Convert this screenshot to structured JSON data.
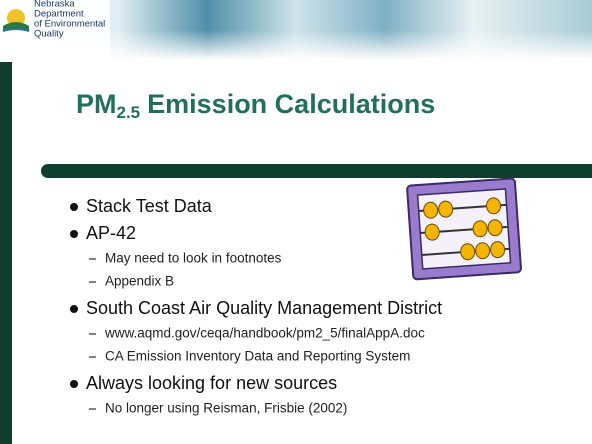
{
  "header": {
    "logo_lines": [
      "Nebraska",
      "Department",
      "of Environmental",
      "Quality"
    ]
  },
  "title": {
    "main": "PM",
    "subscript": "2.5",
    "rest": "Emission Calculations"
  },
  "bullets": [
    {
      "text": "Stack Test Data"
    },
    {
      "text": "AP-42",
      "sub": [
        "May need to look in footnotes",
        "Appendix B"
      ]
    },
    {
      "text": "South Coast Air Quality Management District",
      "sub": [
        "www.aqmd.gov/ceqa/handbook/pm2_5/finalAppA.doc",
        "CA Emission Inventory Data and Reporting System"
      ]
    },
    {
      "text": "Always looking for new sources",
      "sub": [
        "No longer using Reisman, Frisbie (2002)"
      ]
    }
  ]
}
